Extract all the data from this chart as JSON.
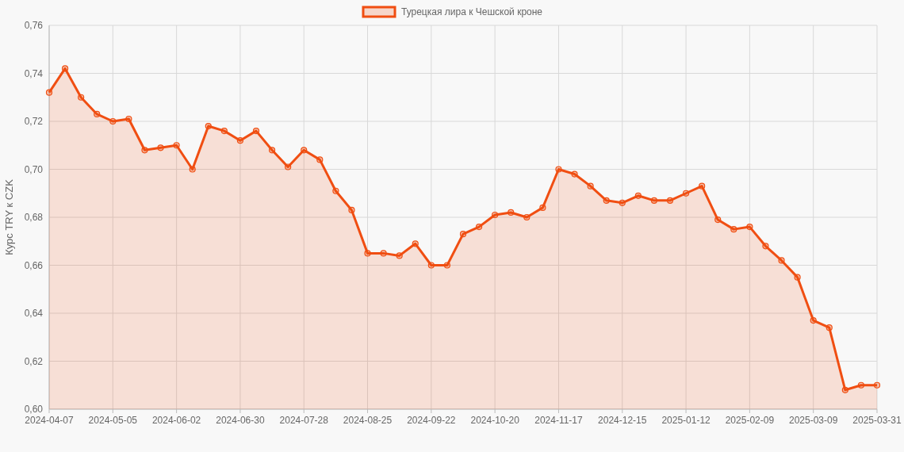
{
  "chart_data": {
    "type": "area",
    "ylabel": "Курс TRY к CZK",
    "legend": "top",
    "grid": true,
    "marker": "circle",
    "line_style": "solid",
    "categories": [
      "2024-04-07",
      null,
      null,
      null,
      "2024-05-05",
      null,
      null,
      null,
      "2024-06-02",
      null,
      null,
      null,
      "2024-06-30",
      null,
      null,
      null,
      "2024-07-28",
      null,
      null,
      null,
      "2024-08-25",
      null,
      null,
      null,
      "2024-09-22",
      null,
      null,
      null,
      "2024-10-20",
      null,
      null,
      null,
      "2024-11-17",
      null,
      null,
      null,
      "2024-12-15",
      null,
      null,
      null,
      "2025-01-12",
      null,
      null,
      null,
      "2025-02-09",
      null,
      null,
      null,
      "2025-03-09",
      null,
      null,
      null,
      "2025-03-31"
    ],
    "series": [
      {
        "name": "Турецкая лира к Чешской кроне",
        "color": "#f04e12",
        "values": [
          0.732,
          0.742,
          0.73,
          0.723,
          0.72,
          0.721,
          0.708,
          0.709,
          0.71,
          0.7,
          0.718,
          0.716,
          0.712,
          0.716,
          0.708,
          0.701,
          0.708,
          0.704,
          0.691,
          0.683,
          0.665,
          0.665,
          0.664,
          0.669,
          0.66,
          0.66,
          0.673,
          0.676,
          0.681,
          0.682,
          0.68,
          0.684,
          0.7,
          0.698,
          0.693,
          0.687,
          0.686,
          0.689,
          0.687,
          0.687,
          0.69,
          0.693,
          0.679,
          0.675,
          0.676,
          0.668,
          0.662,
          0.655,
          0.637,
          0.634,
          0.608,
          0.61,
          0.61
        ]
      }
    ],
    "ylim": [
      0.6,
      0.76
    ],
    "yticks": [
      {
        "value": 0.6,
        "label": "0,60"
      },
      {
        "value": 0.62,
        "label": "0,62"
      },
      {
        "value": 0.64,
        "label": "0,64"
      },
      {
        "value": 0.66,
        "label": "0,66"
      },
      {
        "value": 0.68,
        "label": "0,68"
      },
      {
        "value": 0.7,
        "label": "0,70"
      },
      {
        "value": 0.72,
        "label": "0,72"
      },
      {
        "value": 0.74,
        "label": "0,74"
      },
      {
        "value": 0.76,
        "label": "0,76"
      }
    ]
  }
}
